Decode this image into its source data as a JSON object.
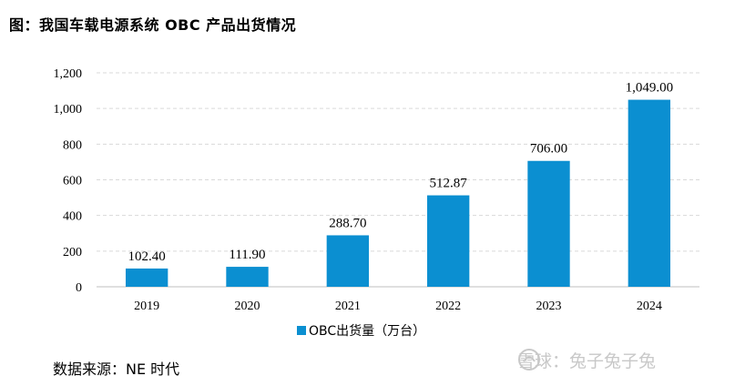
{
  "title": "图：我国车载电源系统 OBC 产品出货情况",
  "source": "数据来源：NE 时代",
  "watermark": "雪球：兔子兔子兔",
  "colors": {
    "bar": "#0b8fd1",
    "grid": "#d9d9d9",
    "axis": "#bfbfbf"
  },
  "chart_data": {
    "type": "bar",
    "title": "图：我国车载电源系统 OBC 产品出货情况",
    "categories": [
      "2019",
      "2020",
      "2021",
      "2022",
      "2023",
      "2024"
    ],
    "series": [
      {
        "name": "OBC出货量（万台）",
        "values": [
          102.4,
          111.9,
          288.7,
          512.87,
          706.0,
          1049.0
        ]
      }
    ],
    "value_labels": [
      "102.40",
      "111.90",
      "288.70",
      "512.87",
      "706.00",
      "1,049.00"
    ],
    "xlabel": "",
    "ylabel": "",
    "ylim": [
      0,
      1200
    ],
    "yticks": [
      0,
      200,
      400,
      600,
      800,
      1000,
      1200
    ],
    "ytick_labels": [
      "0",
      "200",
      "400",
      "600",
      "800",
      "1,000",
      "1,200"
    ],
    "grid": true,
    "legend": "bottom-center"
  }
}
